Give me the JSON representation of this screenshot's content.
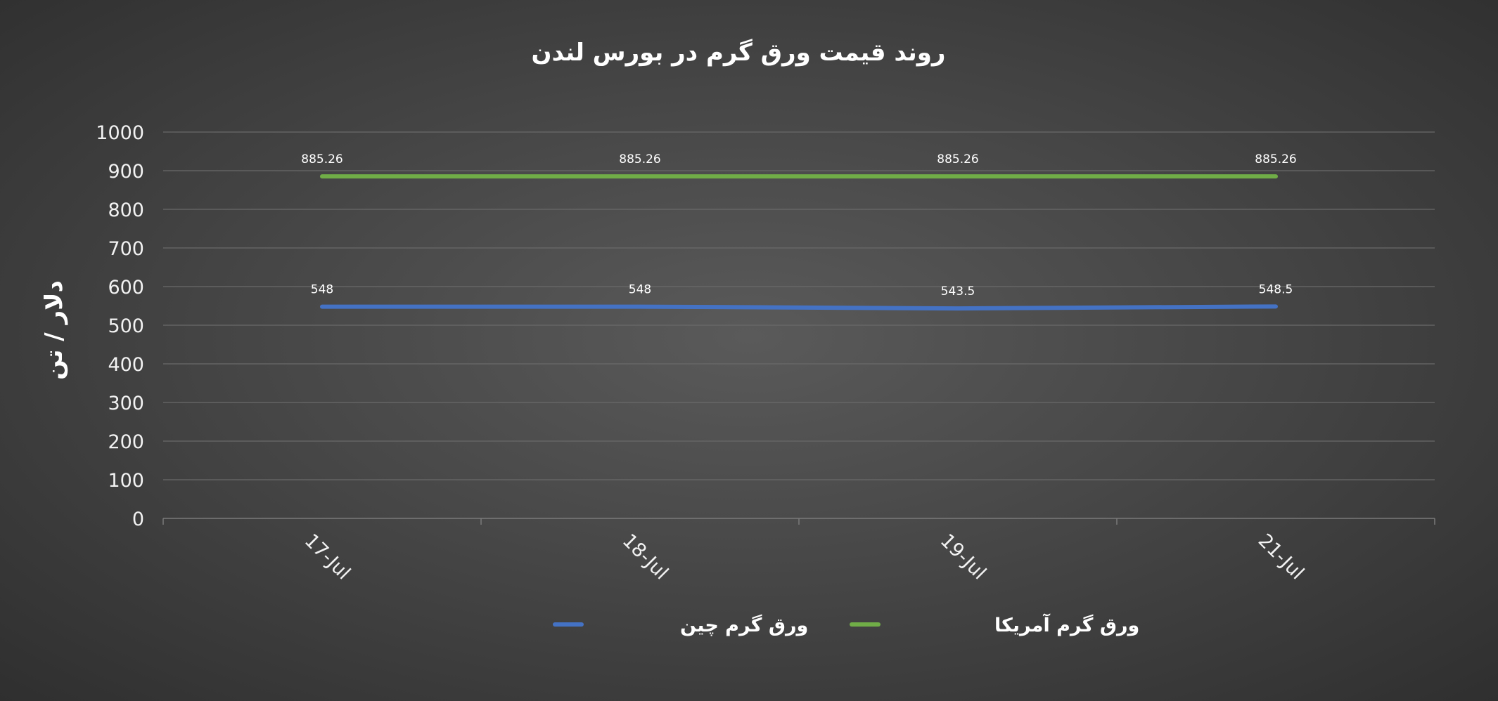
{
  "chart_data": {
    "type": "line",
    "title": "روند قیمت ورق گرم در بورس لندن",
    "ylabel": "دلار / تن",
    "xlabel": "",
    "categories": [
      "17-Jul",
      "18-Jul",
      "19-Jul",
      "21-Jul"
    ],
    "ylim": [
      0,
      1000
    ],
    "yticks": [
      "0",
      "100",
      "200",
      "300",
      "400",
      "500",
      "600",
      "700",
      "800",
      "900",
      "1000"
    ],
    "grid": true,
    "legend_position": "bottom",
    "series": [
      {
        "name": "ورق گرم چین",
        "color": "#4472c4",
        "values": [
          548,
          548,
          543.5,
          548.5
        ],
        "labels": [
          "548",
          "548",
          "543.5",
          "548.5"
        ]
      },
      {
        "name": "ورق گرم آمریکا",
        "color": "#70ad47",
        "values": [
          885.26,
          885.26,
          885.26,
          885.26
        ],
        "labels": [
          "885.26",
          "885.26",
          "885.26",
          "885.26"
        ]
      }
    ]
  }
}
